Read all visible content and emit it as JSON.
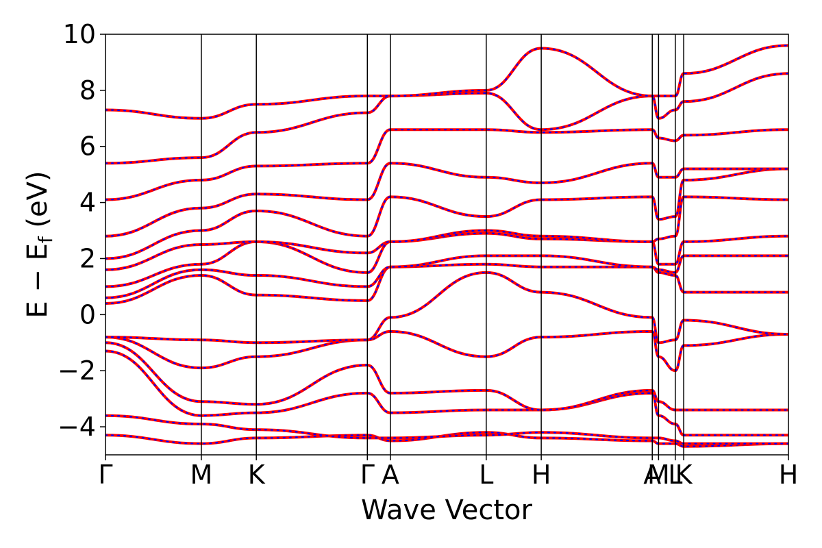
{
  "chart_data": {
    "type": "line",
    "title": "",
    "xlabel": "Wave Vector",
    "ylabel_parts": {
      "main": "E − E",
      "sub": "f",
      "unit": " (eV)"
    },
    "ylim": [
      -5,
      10
    ],
    "yticks": [
      {
        "value": 10,
        "label": "10"
      },
      {
        "value": 8,
        "label": "8"
      },
      {
        "value": 6,
        "label": "6"
      },
      {
        "value": 4,
        "label": "4"
      },
      {
        "value": 2,
        "label": "2"
      },
      {
        "value": 0,
        "label": "0"
      },
      {
        "value": -2,
        "label": "−2"
      },
      {
        "value": -4,
        "label": "−4"
      }
    ],
    "xlim": [
      0,
      6.52
    ],
    "kpoints": [
      {
        "label": "Γ",
        "x": 0.0
      },
      {
        "label": "M",
        "x": 0.915
      },
      {
        "label": "K",
        "x": 1.44
      },
      {
        "label": "Γ",
        "x": 2.5
      },
      {
        "label": "A",
        "x": 2.72
      },
      {
        "label": "L",
        "x": 3.635
      },
      {
        "label": "H",
        "x": 4.16
      },
      {
        "label": "A",
        "x": 5.22
      },
      {
        "label": "M",
        "x": 5.28
      },
      {
        "label": "L",
        "x": 5.44
      },
      {
        "label": "K",
        "x": 5.52
      },
      {
        "label": "H",
        "x": 6.52
      }
    ],
    "grid": false,
    "legend": "none",
    "series_style": [
      {
        "color": "#ff0000",
        "style": "solid"
      },
      {
        "color": "#0000ff",
        "style": "dotted"
      }
    ],
    "bands": [
      [
        -4.3,
        -4.6,
        -4.4,
        -4.3,
        -4.5,
        -4.2,
        -4.4,
        -4.5,
        -4.6,
        -4.6,
        -4.7,
        -4.6
      ],
      [
        -3.6,
        -3.9,
        -4.1,
        -4.4,
        -4.4,
        -4.3,
        -4.2,
        -4.4,
        -4.4,
        -4.5,
        -4.6,
        -4.6
      ],
      [
        -1.3,
        -3.6,
        -3.5,
        -2.8,
        -3.5,
        -3.4,
        -3.4,
        -2.8,
        -3.6,
        -3.9,
        -4.3,
        -4.3
      ],
      [
        -1.0,
        -3.1,
        -3.2,
        -1.8,
        -2.8,
        -2.7,
        -3.4,
        -2.7,
        -3.1,
        -3.4,
        -3.4,
        -3.4
      ],
      [
        -0.8,
        -1.9,
        -1.5,
        -0.9,
        -0.6,
        -1.5,
        -0.8,
        -0.6,
        -1.5,
        -2.0,
        -1.1,
        -0.7
      ],
      [
        -0.8,
        -0.9,
        -1.0,
        -0.9,
        -0.1,
        1.5,
        0.8,
        -0.1,
        -1.0,
        -0.9,
        -0.2,
        -0.7
      ],
      [
        0.4,
        1.4,
        0.7,
        0.5,
        1.7,
        1.8,
        1.7,
        1.7,
        1.5,
        1.4,
        0.8,
        0.8
      ],
      [
        0.6,
        1.6,
        1.4,
        1.0,
        1.7,
        2.1,
        2.1,
        1.7,
        1.6,
        1.5,
        2.1,
        2.1
      ],
      [
        1.0,
        1.8,
        2.6,
        1.5,
        2.6,
        2.9,
        2.7,
        2.6,
        1.8,
        1.8,
        2.6,
        2.8
      ],
      [
        1.6,
        2.5,
        2.6,
        2.2,
        2.6,
        3.0,
        2.8,
        2.6,
        2.7,
        2.8,
        4.2,
        4.1
      ],
      [
        2.0,
        3.0,
        3.7,
        2.8,
        4.2,
        3.5,
        4.1,
        4.2,
        3.4,
        3.5,
        4.8,
        5.2
      ],
      [
        2.8,
        3.8,
        4.3,
        4.1,
        5.4,
        4.9,
        4.7,
        5.4,
        4.9,
        4.9,
        5.2,
        5.2
      ],
      [
        4.1,
        4.8,
        5.3,
        5.4,
        6.6,
        6.6,
        6.5,
        6.6,
        6.3,
        6.2,
        6.4,
        6.6
      ],
      [
        5.4,
        5.6,
        6.5,
        7.2,
        7.8,
        7.9,
        6.6,
        7.8,
        7.0,
        7.3,
        7.6,
        8.6
      ],
      [
        7.3,
        7.0,
        7.5,
        7.8,
        7.8,
        8.0,
        9.5,
        7.8,
        7.8,
        7.8,
        8.6,
        9.6
      ]
    ]
  }
}
